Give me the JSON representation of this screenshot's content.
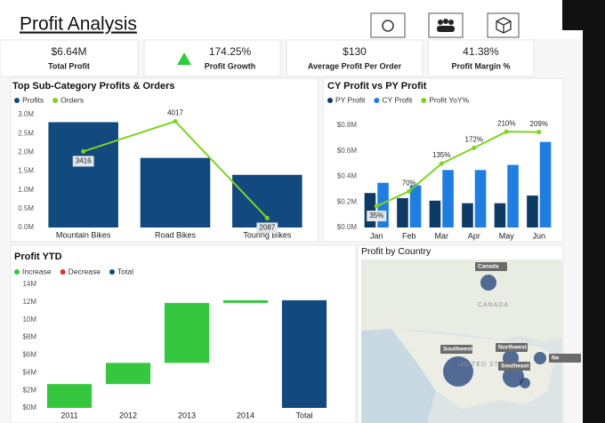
{
  "title": "Profit Analysis",
  "kpis": [
    {
      "value": "$6.64M",
      "label": "Total Profit"
    },
    {
      "value": "174.25%",
      "label": "Profit Growth"
    },
    {
      "value": "$130",
      "label": "Average Profit Per Order"
    },
    {
      "value": "41.38%",
      "label": "Profit Margin %"
    }
  ],
  "chart_data": [
    {
      "type": "combo",
      "title": "Top Sub-Category Profits & Orders",
      "categories": [
        "Mountain Bikes",
        "Road Bikes",
        "Touring Bikes"
      ],
      "series": [
        {
          "name": "Profits",
          "kind": "bar",
          "color": "#12497e",
          "values": [
            2.8,
            1.85,
            1.4
          ]
        },
        {
          "name": "Orders",
          "kind": "line",
          "axis": "y2",
          "color": "#7ed321",
          "values": [
            3416,
            4017,
            2087
          ]
        }
      ],
      "ylim": [
        0,
        3
      ],
      "yticks": [
        {
          "value": 0,
          "label": "0.0M"
        },
        {
          "value": 0.5,
          "label": "0.5M"
        },
        {
          "value": 1,
          "label": "1.0M"
        },
        {
          "value": 1.5,
          "label": "1.5M"
        },
        {
          "value": 2,
          "label": "2.0M"
        },
        {
          "value": 2.5,
          "label": "2.5M"
        },
        {
          "value": 3,
          "label": "3.0M"
        }
      ],
      "y2lim": [
        1900,
        4150
      ]
    },
    {
      "type": "combo",
      "title": "CY Profit vs PY Profit",
      "categories": [
        "Jan",
        "Feb",
        "Mar",
        "Apr",
        "May",
        "Jun"
      ],
      "series": [
        {
          "name": "PY Profit",
          "kind": "bar",
          "color": "#0d3b66",
          "values": [
            0.27,
            0.23,
            0.21,
            0.19,
            0.19,
            0.25
          ]
        },
        {
          "name": "CY Profit",
          "kind": "bar",
          "color": "#1f7ee0",
          "values": [
            0.35,
            0.33,
            0.45,
            0.45,
            0.49,
            0.67
          ]
        },
        {
          "name": "Profit YoY%",
          "kind": "line",
          "axis": "y2",
          "color": "#7ed321",
          "values": [
            35,
            70,
            135,
            172,
            210,
            209
          ],
          "value_labels": [
            "35%",
            "70%",
            "135%",
            "172%",
            "210%",
            "209%"
          ]
        }
      ],
      "ylim": [
        0,
        0.8
      ],
      "yticks": [
        {
          "value": 0,
          "label": "$0.0M"
        },
        {
          "value": 0.2,
          "label": "$0.2M"
        },
        {
          "value": 0.4,
          "label": "$0.4M"
        },
        {
          "value": 0.6,
          "label": "$0.6M"
        },
        {
          "value": 0.8,
          "label": "$0.8M"
        }
      ],
      "y2lim": [
        -15,
        225
      ]
    },
    {
      "type": "waterfall",
      "title": "Profit YTD",
      "categories": [
        "2011",
        "2012",
        "2013",
        "2014",
        "Total"
      ],
      "values": [
        2.7,
        2.4,
        6.8,
        0.3,
        12.2
      ],
      "legend": [
        {
          "name": "Increase",
          "color": "#35c83f"
        },
        {
          "name": "Decrease",
          "color": "#e0313b"
        },
        {
          "name": "Total",
          "color": "#12497e"
        }
      ],
      "kinds": [
        0,
        0,
        0,
        0,
        2
      ],
      "ylim": [
        0,
        14
      ],
      "yticks": [
        {
          "value": 0,
          "label": "$0M"
        },
        {
          "value": 2,
          "label": "$2M"
        },
        {
          "value": 4,
          "label": "$4M"
        },
        {
          "value": 6,
          "label": "$6M"
        },
        {
          "value": 8,
          "label": "$8M"
        },
        {
          "value": 10,
          "label": "10M"
        },
        {
          "value": 12,
          "label": "12M"
        },
        {
          "value": 14,
          "label": "14M"
        }
      ]
    }
  ],
  "map": {
    "title": "Profit by Country",
    "region_labels": [
      "CANADA",
      "UNITED STATES"
    ],
    "bubbles": [
      "Canada",
      "Southwest",
      "Northwest",
      "Southeast",
      "Ne"
    ]
  }
}
